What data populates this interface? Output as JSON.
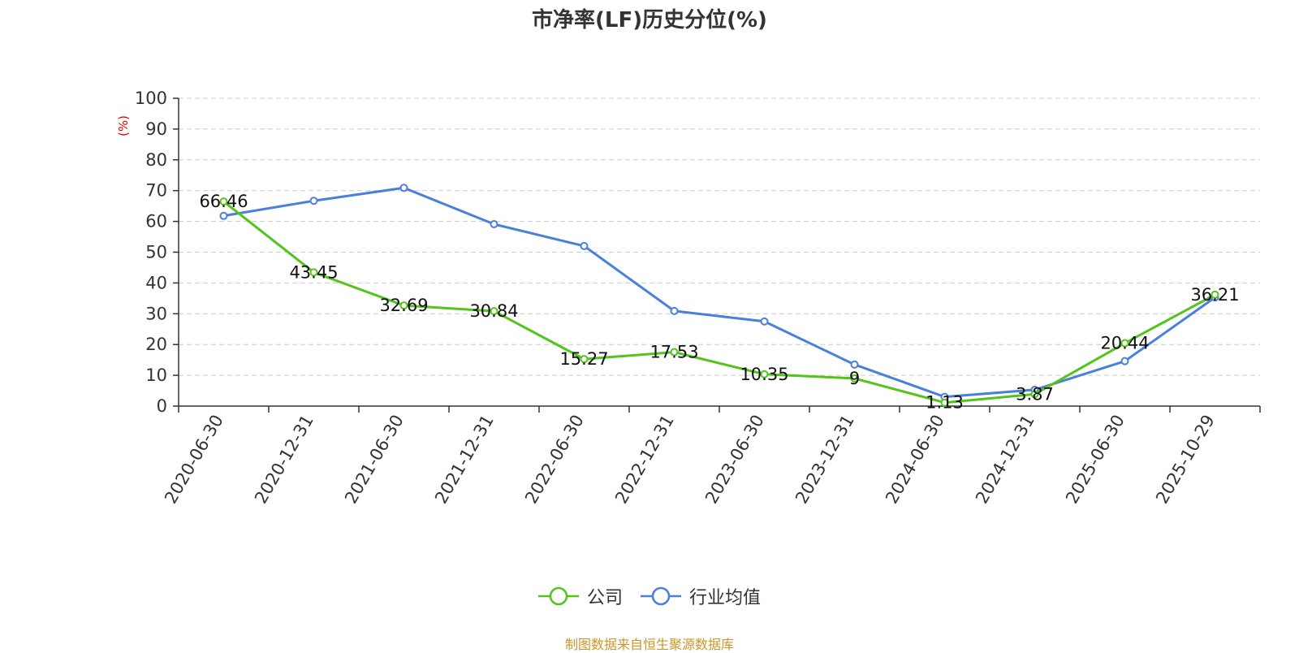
{
  "chart_data": {
    "type": "line",
    "title": "市净率(LF)历史分位(%)",
    "ylabel": "(%)",
    "ylim": [
      0,
      100
    ],
    "yticks": [
      0,
      10,
      20,
      30,
      40,
      50,
      60,
      70,
      80,
      90,
      100
    ],
    "grid": true,
    "legend_position": "bottom",
    "categories": [
      "2020-06-30",
      "2020-12-31",
      "2021-06-30",
      "2021-12-31",
      "2022-06-30",
      "2022-12-31",
      "2023-06-30",
      "2023-12-31",
      "2024-06-30",
      "2024-12-31",
      "2025-06-30",
      "2025-10-29"
    ],
    "series": [
      {
        "name": "公司",
        "color": "#52c41a",
        "show_labels": true,
        "values": [
          66.46,
          43.45,
          32.69,
          30.84,
          15.27,
          17.53,
          10.35,
          9,
          1.13,
          3.87,
          20.44,
          36.21
        ]
      },
      {
        "name": "行业均值",
        "color": "#4a7fdb",
        "show_labels": false,
        "values": [
          61.8,
          66.7,
          70.9,
          59.1,
          52.0,
          30.9,
          27.5,
          13.5,
          3.0,
          5.3,
          14.6,
          35.3
        ]
      }
    ]
  },
  "source": "制图数据来自恒生聚源数据库"
}
